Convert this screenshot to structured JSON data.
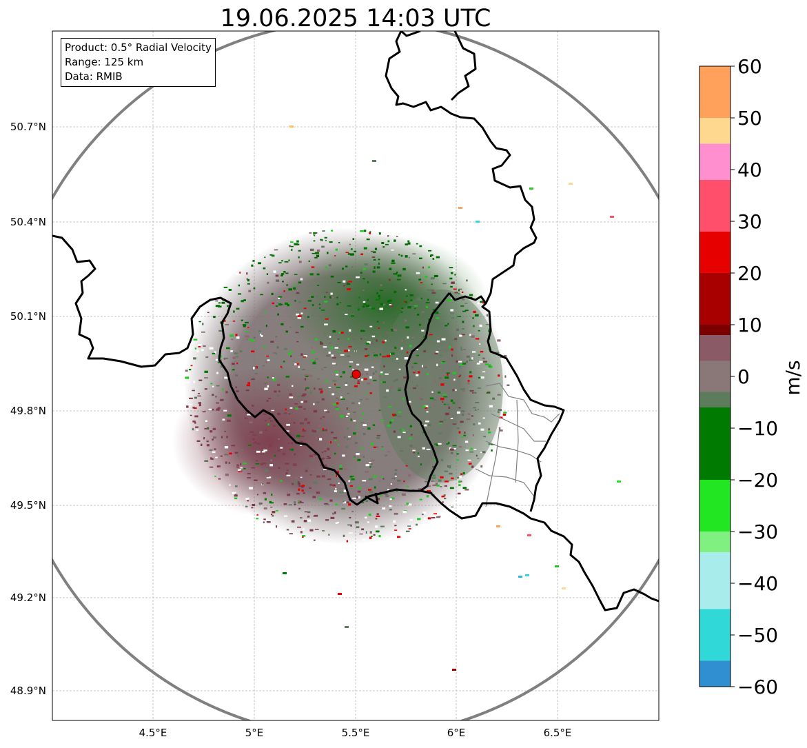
{
  "title": "19.06.2025 14:03 UTC",
  "info": {
    "product": "Product: 0.5° Radial Velocity",
    "range": "Range: 125 km",
    "data": "Data: RMIB"
  },
  "lat_ticks": [
    "50.7°N",
    "50.4°N",
    "50.1°N",
    "49.8°N",
    "49.5°N",
    "49.2°N",
    "48.9°N"
  ],
  "lon_ticks": [
    "4.5°E",
    "5°E",
    "5.5°E",
    "6°E",
    "6.5°E"
  ],
  "colorbar": {
    "label": "m/s",
    "tick_labels": [
      "60",
      "50",
      "40",
      "30",
      "20",
      "10",
      "0",
      "−10",
      "−20",
      "−30",
      "−40",
      "−50",
      "−60"
    ],
    "range": [
      -60,
      60
    ],
    "bands": [
      {
        "from": 50,
        "to": 60,
        "color": "#ffa15a"
      },
      {
        "from": 45,
        "to": 50,
        "color": "#ffd890"
      },
      {
        "from": 38,
        "to": 45,
        "color": "#ff8fcf"
      },
      {
        "from": 28,
        "to": 38,
        "color": "#ff4f6a"
      },
      {
        "from": 20,
        "to": 28,
        "color": "#e60000"
      },
      {
        "from": 10,
        "to": 20,
        "color": "#a80000"
      },
      {
        "from": 8,
        "to": 10,
        "color": "#7a0000"
      },
      {
        "from": 3,
        "to": 8,
        "color": "#8a5a66"
      },
      {
        "from": -3,
        "to": 3,
        "color": "#8a7878"
      },
      {
        "from": -6,
        "to": -3,
        "color": "#5c7c5c"
      },
      {
        "from": -20,
        "to": -6,
        "color": "#007a00"
      },
      {
        "from": -30,
        "to": -20,
        "color": "#22e622"
      },
      {
        "from": -34,
        "to": -30,
        "color": "#80f080"
      },
      {
        "from": -45,
        "to": -34,
        "color": "#a8ecec"
      },
      {
        "from": -55,
        "to": -45,
        "color": "#30d8d8"
      },
      {
        "from": -60,
        "to": -55,
        "color": "#2f8fd0"
      }
    ]
  },
  "colors": {
    "range_ring": "#808080",
    "borders": "#000000",
    "sub_borders": "#808080",
    "radar_site": "#e60000",
    "grid": "#b8b8b8"
  }
}
